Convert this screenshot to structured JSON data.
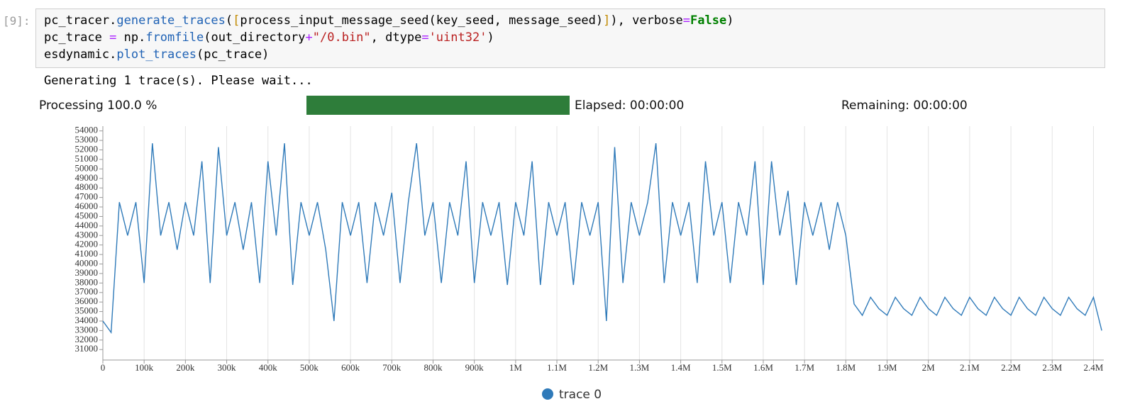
{
  "cell": {
    "prompt": "[9]:",
    "code": [
      [
        "pc_tracer.",
        "generate_traces",
        "(",
        "[",
        "process_input_message_seed(key_seed, message_seed)",
        "]",
        ")",
        ", verbose",
        "=",
        "False",
        ")"
      ],
      [
        "pc_trace ",
        "=",
        " np.",
        "fromfile",
        "(out_directory",
        "+",
        "\"/0.bin\"",
        ", dtype",
        "=",
        "'uint32'",
        ")"
      ],
      [
        "esdynamic.",
        "plot_traces",
        "(pc_trace)"
      ]
    ]
  },
  "output": {
    "message": "Generating 1 trace(s). Please wait...",
    "progress_label": "Processing 100.0 %",
    "progress": 100,
    "elapsed": "Elapsed: 00:00:00",
    "remaining": "Remaining: 00:00:00"
  },
  "chart_data": {
    "type": "line",
    "grid": "x",
    "x": [
      0,
      20000,
      40000,
      60000,
      80000,
      100000,
      120000,
      140000,
      160000,
      180000,
      200000,
      220000,
      240000,
      260000,
      280000,
      300000,
      320000,
      340000,
      360000,
      380000,
      400000,
      420000,
      440000,
      460000,
      480000,
      500000,
      520000,
      540000,
      560000,
      580000,
      600000,
      620000,
      640000,
      660000,
      680000,
      700000,
      720000,
      740000,
      760000,
      780000,
      800000,
      820000,
      840000,
      860000,
      880000,
      900000,
      920000,
      940000,
      960000,
      980000,
      1000000,
      1020000,
      1040000,
      1060000,
      1080000,
      1100000,
      1120000,
      1140000,
      1160000,
      1180000,
      1200000,
      1220000,
      1240000,
      1260000,
      1280000,
      1300000,
      1320000,
      1340000,
      1360000,
      1380000,
      1400000,
      1420000,
      1440000,
      1460000,
      1480000,
      1500000,
      1520000,
      1540000,
      1560000,
      1580000,
      1600000,
      1620000,
      1640000,
      1660000,
      1680000,
      1700000,
      1720000,
      1740000,
      1760000,
      1780000,
      1800000,
      1820000,
      1840000,
      1860000,
      1880000,
      1900000,
      1920000,
      1940000,
      1960000,
      1980000,
      2000000,
      2020000,
      2040000,
      2060000,
      2080000,
      2100000,
      2120000,
      2140000,
      2160000,
      2180000,
      2200000,
      2220000,
      2240000,
      2260000,
      2280000,
      2300000,
      2320000,
      2340000,
      2360000,
      2380000,
      2400000,
      2420000
    ],
    "series": [
      {
        "name": "trace 0",
        "color": "#2f7ab9",
        "values": [
          34000,
          32800,
          46500,
          43000,
          46500,
          38000,
          52700,
          43000,
          46500,
          41500,
          46500,
          43000,
          50800,
          38000,
          52300,
          43000,
          46500,
          41500,
          46500,
          38000,
          50800,
          43000,
          52700,
          37800,
          46500,
          43000,
          46500,
          41500,
          34000,
          46500,
          43000,
          46500,
          38000,
          46500,
          43000,
          47500,
          38000,
          46500,
          52700,
          43000,
          46500,
          38000,
          46500,
          43000,
          50800,
          38000,
          46500,
          43000,
          46500,
          37800,
          46500,
          43000,
          50800,
          37800,
          46500,
          43000,
          46500,
          37800,
          46500,
          43000,
          46500,
          34000,
          52300,
          38000,
          46500,
          43000,
          46500,
          52700,
          38000,
          46500,
          43000,
          46500,
          38000,
          50800,
          43000,
          46500,
          38000,
          46500,
          43000,
          50800,
          37800,
          50800,
          43000,
          47700,
          37800,
          46500,
          43000,
          46500,
          41500,
          46500,
          43000,
          35800,
          34600,
          36500,
          35300,
          34600,
          36500,
          35300,
          34600,
          36500,
          35300,
          34600,
          36500,
          35300,
          34600,
          36500,
          35300,
          34600,
          36500,
          35300,
          34600,
          36500,
          35300,
          34600,
          36500,
          35300,
          34600,
          36500,
          35300,
          34600,
          36500,
          33000
        ]
      }
    ],
    "xlim": [
      0,
      2425000
    ],
    "xticks": [
      0,
      {
        "value": 100000,
        "label": "100k"
      },
      {
        "value": 200000,
        "label": "200k"
      },
      {
        "value": 300000,
        "label": "300k"
      },
      {
        "value": 400000,
        "label": "400k"
      },
      {
        "value": 500000,
        "label": "500k"
      },
      {
        "value": 600000,
        "label": "600k"
      },
      {
        "value": 700000,
        "label": "700k"
      },
      {
        "value": 800000,
        "label": "800k"
      },
      {
        "value": 900000,
        "label": "900k"
      },
      {
        "value": 1000000,
        "label": "1M"
      },
      {
        "value": 1100000,
        "label": "1.1M"
      },
      {
        "value": 1200000,
        "label": "1.2M"
      },
      {
        "value": 1300000,
        "label": "1.3M"
      },
      {
        "value": 1400000,
        "label": "1.4M"
      },
      {
        "value": 1500000,
        "label": "1.5M"
      },
      {
        "value": 1600000,
        "label": "1.6M"
      },
      {
        "value": 1700000,
        "label": "1.7M"
      },
      {
        "value": 1800000,
        "label": "1.8M"
      },
      {
        "value": 1900000,
        "label": "1.9M"
      },
      {
        "value": 2000000,
        "label": "2M"
      },
      {
        "value": 2100000,
        "label": "2.1M"
      },
      {
        "value": 2200000,
        "label": "2.2M"
      },
      {
        "value": 2300000,
        "label": "2.3M"
      },
      {
        "value": 2400000,
        "label": "2.4M"
      }
    ],
    "ylim": [
      29900,
      54500
    ],
    "yticks": [
      31000,
      32000,
      33000,
      34000,
      35000,
      36000,
      37000,
      38000,
      39000,
      40000,
      41000,
      42000,
      43000,
      44000,
      45000,
      46000,
      47000,
      48000,
      49000,
      50000,
      51000,
      52000,
      53000,
      54000
    ]
  }
}
